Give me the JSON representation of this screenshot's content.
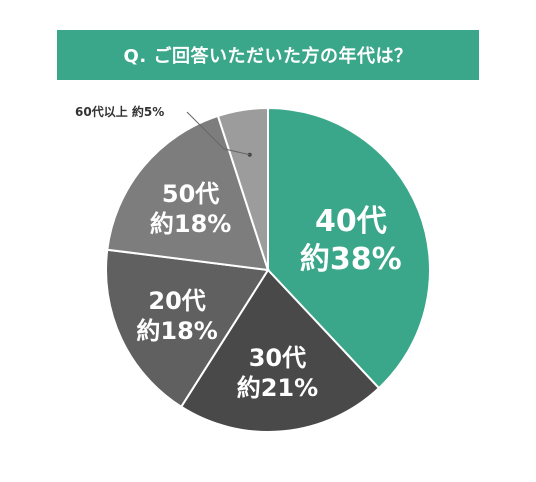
{
  "chart_data": {
    "type": "pie",
    "title": "Q. ご回答いただいた方の年代は？",
    "colors": {
      "accent": "#3aa68a",
      "40代": "#3aa68a",
      "30代": "#494949",
      "20代": "#606060",
      "50代": "#7d7d7d",
      "60代以上": "#9c9c9c",
      "border": "#ffffff",
      "label_text": "#ffffff",
      "callout_text": "#333333"
    },
    "slices": [
      {
        "category": "40代",
        "value": 38,
        "value_label": "約38%"
      },
      {
        "category": "30代",
        "value": 21,
        "value_label": "約21%"
      },
      {
        "category": "20代",
        "value": 18,
        "value_label": "約18%"
      },
      {
        "category": "50代",
        "value": 18,
        "value_label": "約18%"
      },
      {
        "category": "60代以上",
        "value": 5,
        "value_label": "約5%",
        "callout": true
      }
    ],
    "start_angle": "12 o'clock",
    "direction": "clockwise"
  }
}
